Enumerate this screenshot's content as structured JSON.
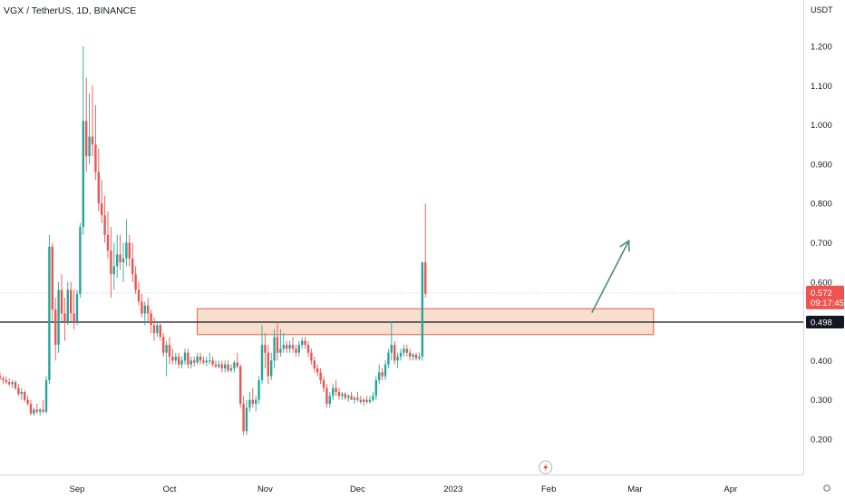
{
  "header": {
    "title": "VGX / TetherUS, 1D, BINANCE"
  },
  "colors": {
    "up": "#26a69a",
    "down": "#ef5350",
    "support_line": "#131722",
    "zone_fill": "#f7d9c4",
    "zone_border": "#e05a4a",
    "arrow": "#4d8a80",
    "price_tag": "#ef5350",
    "support_tag": "#131722",
    "grid_dash": "#c8cbd1",
    "event_icon": "#e4463a"
  },
  "icons": {
    "event": "lightning-icon"
  },
  "chart_data": {
    "type": "candlestick",
    "title": "VGX / TetherUS, 1D, BINANCE",
    "symbol": "VGX / TetherUS",
    "interval": "1D",
    "exchange": "BINANCE",
    "y_unit": "USDT",
    "ylim": [
      0.1,
      1.3
    ],
    "y_ticks": [
      "1.200",
      "1.100",
      "1.000",
      "0.900",
      "0.800",
      "0.700",
      "0.600",
      "0.400",
      "0.300",
      "0.200"
    ],
    "x_ticks": [
      {
        "label": "Sep",
        "date": "2022-09-01"
      },
      {
        "label": "Oct",
        "date": "2022-10-01"
      },
      {
        "label": "Nov",
        "date": "2022-11-01"
      },
      {
        "label": "Dec",
        "date": "2022-12-01"
      },
      {
        "label": "2023",
        "date": "2023-01-01"
      },
      {
        "label": "Feb",
        "date": "2023-02-01"
      },
      {
        "label": "Mar",
        "date": "2023-03-01"
      },
      {
        "label": "Apr",
        "date": "2023-04-01"
      }
    ],
    "first_candle_date": "2022-08-07",
    "candles_ohlc": [
      [
        0.36,
        0.37,
        0.35,
        0.355
      ],
      [
        0.355,
        0.36,
        0.34,
        0.35
      ],
      [
        0.35,
        0.36,
        0.34,
        0.345
      ],
      [
        0.345,
        0.355,
        0.335,
        0.34
      ],
      [
        0.34,
        0.35,
        0.33,
        0.345
      ],
      [
        0.345,
        0.35,
        0.325,
        0.33
      ],
      [
        0.33,
        0.34,
        0.31,
        0.315
      ],
      [
        0.315,
        0.33,
        0.3,
        0.32
      ],
      [
        0.32,
        0.325,
        0.295,
        0.3
      ],
      [
        0.3,
        0.31,
        0.285,
        0.29
      ],
      [
        0.29,
        0.3,
        0.26,
        0.265
      ],
      [
        0.265,
        0.28,
        0.26,
        0.275
      ],
      [
        0.275,
        0.29,
        0.265,
        0.27
      ],
      [
        0.27,
        0.28,
        0.26,
        0.275
      ],
      [
        0.275,
        0.3,
        0.265,
        0.27
      ],
      [
        0.27,
        0.36,
        0.265,
        0.35
      ],
      [
        0.35,
        0.72,
        0.34,
        0.69
      ],
      [
        0.69,
        0.7,
        0.5,
        0.53
      ],
      [
        0.53,
        0.56,
        0.4,
        0.44
      ],
      [
        0.44,
        0.6,
        0.42,
        0.58
      ],
      [
        0.58,
        0.62,
        0.5,
        0.52
      ],
      [
        0.52,
        0.56,
        0.45,
        0.5
      ],
      [
        0.5,
        0.6,
        0.49,
        0.58
      ],
      [
        0.58,
        0.6,
        0.5,
        0.52
      ],
      [
        0.52,
        0.58,
        0.48,
        0.5
      ],
      [
        0.5,
        0.58,
        0.49,
        0.57
      ],
      [
        0.57,
        0.75,
        0.56,
        0.74
      ],
      [
        0.74,
        1.2,
        0.72,
        1.01
      ],
      [
        1.01,
        1.12,
        0.88,
        0.92
      ],
      [
        0.92,
        1.08,
        0.9,
        0.97
      ],
      [
        0.97,
        1.1,
        0.92,
        0.95
      ],
      [
        0.95,
        1.05,
        0.86,
        0.88
      ],
      [
        0.88,
        0.94,
        0.78,
        0.8
      ],
      [
        0.8,
        0.86,
        0.75,
        0.77
      ],
      [
        0.77,
        0.82,
        0.7,
        0.72
      ],
      [
        0.72,
        0.78,
        0.66,
        0.68
      ],
      [
        0.68,
        0.74,
        0.56,
        0.62
      ],
      [
        0.62,
        0.7,
        0.58,
        0.64
      ],
      [
        0.64,
        0.72,
        0.61,
        0.67
      ],
      [
        0.67,
        0.72,
        0.63,
        0.65
      ],
      [
        0.65,
        0.7,
        0.6,
        0.66
      ],
      [
        0.66,
        0.76,
        0.64,
        0.7
      ],
      [
        0.7,
        0.72,
        0.64,
        0.66
      ],
      [
        0.66,
        0.7,
        0.6,
        0.62
      ],
      [
        0.62,
        0.64,
        0.57,
        0.58
      ],
      [
        0.58,
        0.6,
        0.54,
        0.55
      ],
      [
        0.55,
        0.57,
        0.51,
        0.52
      ],
      [
        0.52,
        0.55,
        0.49,
        0.54
      ],
      [
        0.54,
        0.56,
        0.5,
        0.52
      ],
      [
        0.52,
        0.53,
        0.47,
        0.49
      ],
      [
        0.49,
        0.51,
        0.45,
        0.47
      ],
      [
        0.47,
        0.5,
        0.46,
        0.49
      ],
      [
        0.49,
        0.5,
        0.45,
        0.46
      ],
      [
        0.46,
        0.47,
        0.41,
        0.42
      ],
      [
        0.42,
        0.45,
        0.36,
        0.44
      ],
      [
        0.44,
        0.46,
        0.39,
        0.41
      ],
      [
        0.41,
        0.43,
        0.39,
        0.4
      ],
      [
        0.4,
        0.42,
        0.39,
        0.41
      ],
      [
        0.41,
        0.42,
        0.38,
        0.39
      ],
      [
        0.39,
        0.41,
        0.38,
        0.4
      ],
      [
        0.4,
        0.43,
        0.39,
        0.42
      ],
      [
        0.42,
        0.43,
        0.38,
        0.39
      ],
      [
        0.39,
        0.41,
        0.38,
        0.4
      ],
      [
        0.4,
        0.41,
        0.385,
        0.395
      ],
      [
        0.395,
        0.42,
        0.39,
        0.41
      ],
      [
        0.41,
        0.42,
        0.39,
        0.4
      ],
      [
        0.4,
        0.41,
        0.39,
        0.395
      ],
      [
        0.395,
        0.41,
        0.385,
        0.4
      ],
      [
        0.4,
        0.42,
        0.39,
        0.4
      ],
      [
        0.4,
        0.41,
        0.385,
        0.39
      ],
      [
        0.39,
        0.4,
        0.38,
        0.385
      ],
      [
        0.385,
        0.4,
        0.38,
        0.39
      ],
      [
        0.39,
        0.4,
        0.37,
        0.38
      ],
      [
        0.38,
        0.4,
        0.37,
        0.39
      ],
      [
        0.39,
        0.4,
        0.37,
        0.375
      ],
      [
        0.375,
        0.39,
        0.37,
        0.38
      ],
      [
        0.38,
        0.4,
        0.37,
        0.395
      ],
      [
        0.395,
        0.42,
        0.38,
        0.385
      ],
      [
        0.385,
        0.39,
        0.28,
        0.29
      ],
      [
        0.29,
        0.31,
        0.21,
        0.22
      ],
      [
        0.22,
        0.3,
        0.21,
        0.28
      ],
      [
        0.28,
        0.32,
        0.27,
        0.3
      ],
      [
        0.3,
        0.33,
        0.28,
        0.29
      ],
      [
        0.29,
        0.31,
        0.27,
        0.3
      ],
      [
        0.3,
        0.36,
        0.29,
        0.35
      ],
      [
        0.35,
        0.49,
        0.34,
        0.44
      ],
      [
        0.44,
        0.47,
        0.38,
        0.42
      ],
      [
        0.42,
        0.44,
        0.34,
        0.36
      ],
      [
        0.36,
        0.42,
        0.35,
        0.4
      ],
      [
        0.4,
        0.48,
        0.38,
        0.46
      ],
      [
        0.46,
        0.5,
        0.4,
        0.42
      ],
      [
        0.42,
        0.48,
        0.41,
        0.43
      ],
      [
        0.43,
        0.47,
        0.42,
        0.44
      ],
      [
        0.44,
        0.45,
        0.42,
        0.43
      ],
      [
        0.43,
        0.45,
        0.42,
        0.44
      ],
      [
        0.44,
        0.46,
        0.42,
        0.43
      ],
      [
        0.43,
        0.44,
        0.41,
        0.42
      ],
      [
        0.42,
        0.45,
        0.41,
        0.44
      ],
      [
        0.44,
        0.46,
        0.43,
        0.45
      ],
      [
        0.45,
        0.46,
        0.43,
        0.44
      ],
      [
        0.44,
        0.45,
        0.41,
        0.42
      ],
      [
        0.42,
        0.43,
        0.39,
        0.4
      ],
      [
        0.4,
        0.41,
        0.37,
        0.38
      ],
      [
        0.38,
        0.39,
        0.36,
        0.37
      ],
      [
        0.37,
        0.38,
        0.34,
        0.35
      ],
      [
        0.35,
        0.36,
        0.32,
        0.33
      ],
      [
        0.33,
        0.34,
        0.28,
        0.29
      ],
      [
        0.29,
        0.32,
        0.28,
        0.31
      ],
      [
        0.31,
        0.34,
        0.3,
        0.33
      ],
      [
        0.33,
        0.35,
        0.31,
        0.32
      ],
      [
        0.32,
        0.33,
        0.3,
        0.31
      ],
      [
        0.31,
        0.32,
        0.3,
        0.315
      ],
      [
        0.315,
        0.32,
        0.3,
        0.305
      ],
      [
        0.305,
        0.315,
        0.295,
        0.31
      ],
      [
        0.31,
        0.32,
        0.3,
        0.3
      ],
      [
        0.3,
        0.31,
        0.29,
        0.305
      ],
      [
        0.305,
        0.32,
        0.295,
        0.3
      ],
      [
        0.3,
        0.31,
        0.29,
        0.295
      ],
      [
        0.295,
        0.305,
        0.285,
        0.3
      ],
      [
        0.3,
        0.31,
        0.29,
        0.295
      ],
      [
        0.295,
        0.31,
        0.29,
        0.3
      ],
      [
        0.3,
        0.32,
        0.295,
        0.31
      ],
      [
        0.31,
        0.36,
        0.3,
        0.35
      ],
      [
        0.35,
        0.39,
        0.34,
        0.37
      ],
      [
        0.37,
        0.38,
        0.35,
        0.36
      ],
      [
        0.36,
        0.4,
        0.35,
        0.39
      ],
      [
        0.39,
        0.43,
        0.38,
        0.42
      ],
      [
        0.42,
        0.5,
        0.4,
        0.44
      ],
      [
        0.44,
        0.45,
        0.39,
        0.4
      ],
      [
        0.4,
        0.42,
        0.38,
        0.41
      ],
      [
        0.41,
        0.43,
        0.4,
        0.42
      ],
      [
        0.42,
        0.44,
        0.41,
        0.43
      ],
      [
        0.43,
        0.44,
        0.41,
        0.42
      ],
      [
        0.42,
        0.43,
        0.4,
        0.41
      ],
      [
        0.41,
        0.42,
        0.4,
        0.415
      ],
      [
        0.415,
        0.42,
        0.4,
        0.405
      ],
      [
        0.405,
        0.42,
        0.4,
        0.41
      ],
      [
        0.41,
        0.65,
        0.4,
        0.65
      ],
      [
        0.65,
        0.8,
        0.56,
        0.57
      ]
    ],
    "last_price": "0.572",
    "countdown": "09:17:45",
    "support_level": "0.498",
    "demand_zone": {
      "low": 0.466,
      "high": 0.532,
      "from": "2022-10-10",
      "to": "2023-03-07"
    },
    "projection_arrow": {
      "from": {
        "date": "2023-02-15",
        "price": 0.522
      },
      "to": {
        "date": "2023-02-27",
        "price": 0.705
      }
    },
    "event_marker": {
      "date": "2023-01-31",
      "icon": "lightning-icon"
    }
  }
}
